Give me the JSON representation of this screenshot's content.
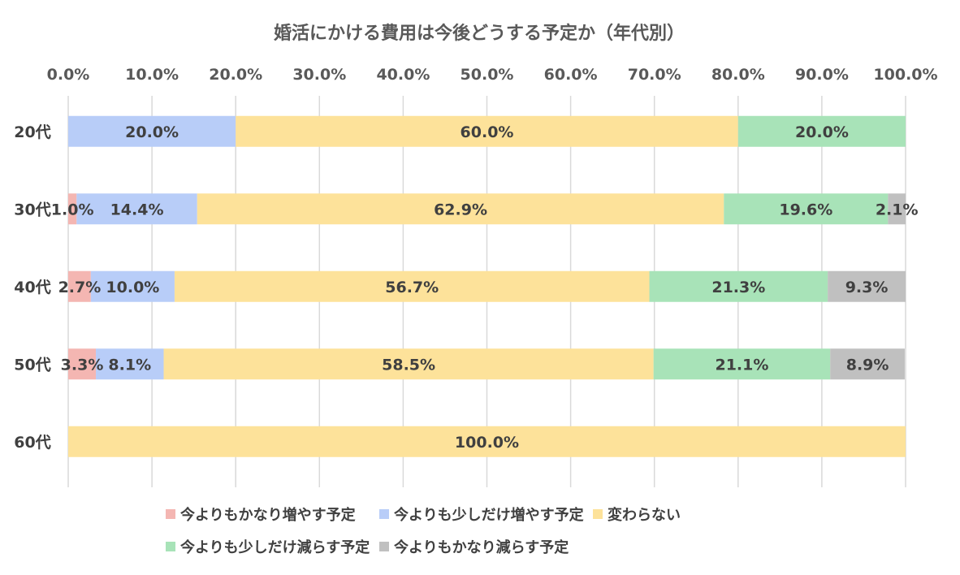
{
  "chart_data": {
    "type": "bar",
    "orientation": "horizontal",
    "stacked": true,
    "title": "婚活にかける費用は今後どうする予定か（年代別）",
    "categories": [
      "20代",
      "30代",
      "40代",
      "50代",
      "60代"
    ],
    "xlim": [
      0,
      100
    ],
    "xticks": [
      "0.0%",
      "10.0%",
      "20.0%",
      "30.0%",
      "40.0%",
      "50.0%",
      "60.0%",
      "70.0%",
      "80.0%",
      "90.0%",
      "100.0%"
    ],
    "grid": true,
    "legend_position": "bottom",
    "series": [
      {
        "name": "今よりもかなり増やす予定",
        "color": "#f4b6b2",
        "values": [
          0,
          1.0,
          2.7,
          3.3,
          0
        ]
      },
      {
        "name": "今よりも少しだけ増やす予定",
        "color": "#b8cdf8",
        "values": [
          20.0,
          14.4,
          10.0,
          8.1,
          0
        ]
      },
      {
        "name": "変わらない",
        "color": "#fde29a",
        "values": [
          60.0,
          62.9,
          56.7,
          58.5,
          100.0
        ]
      },
      {
        "name": "今よりも少しだけ減らす予定",
        "color": "#a8e3b8",
        "values": [
          20.0,
          19.6,
          21.3,
          21.1,
          0
        ]
      },
      {
        "name": "今よりもかなり減らす予定",
        "color": "#c0c0c0",
        "values": [
          0,
          2.1,
          9.3,
          8.9,
          0
        ]
      }
    ],
    "data_labels": [
      [
        "",
        "20.0%",
        "60.0%",
        "20.0%",
        ""
      ],
      [
        "1.0%",
        "14.4%",
        "62.9%",
        "19.6%",
        "2.1%"
      ],
      [
        "2.7%",
        "10.0%",
        "56.7%",
        "21.3%",
        "9.3%"
      ],
      [
        "3.3%",
        "8.1%",
        "58.5%",
        "21.1%",
        "8.9%"
      ],
      [
        "",
        "",
        "100.0%",
        "",
        ""
      ]
    ]
  }
}
